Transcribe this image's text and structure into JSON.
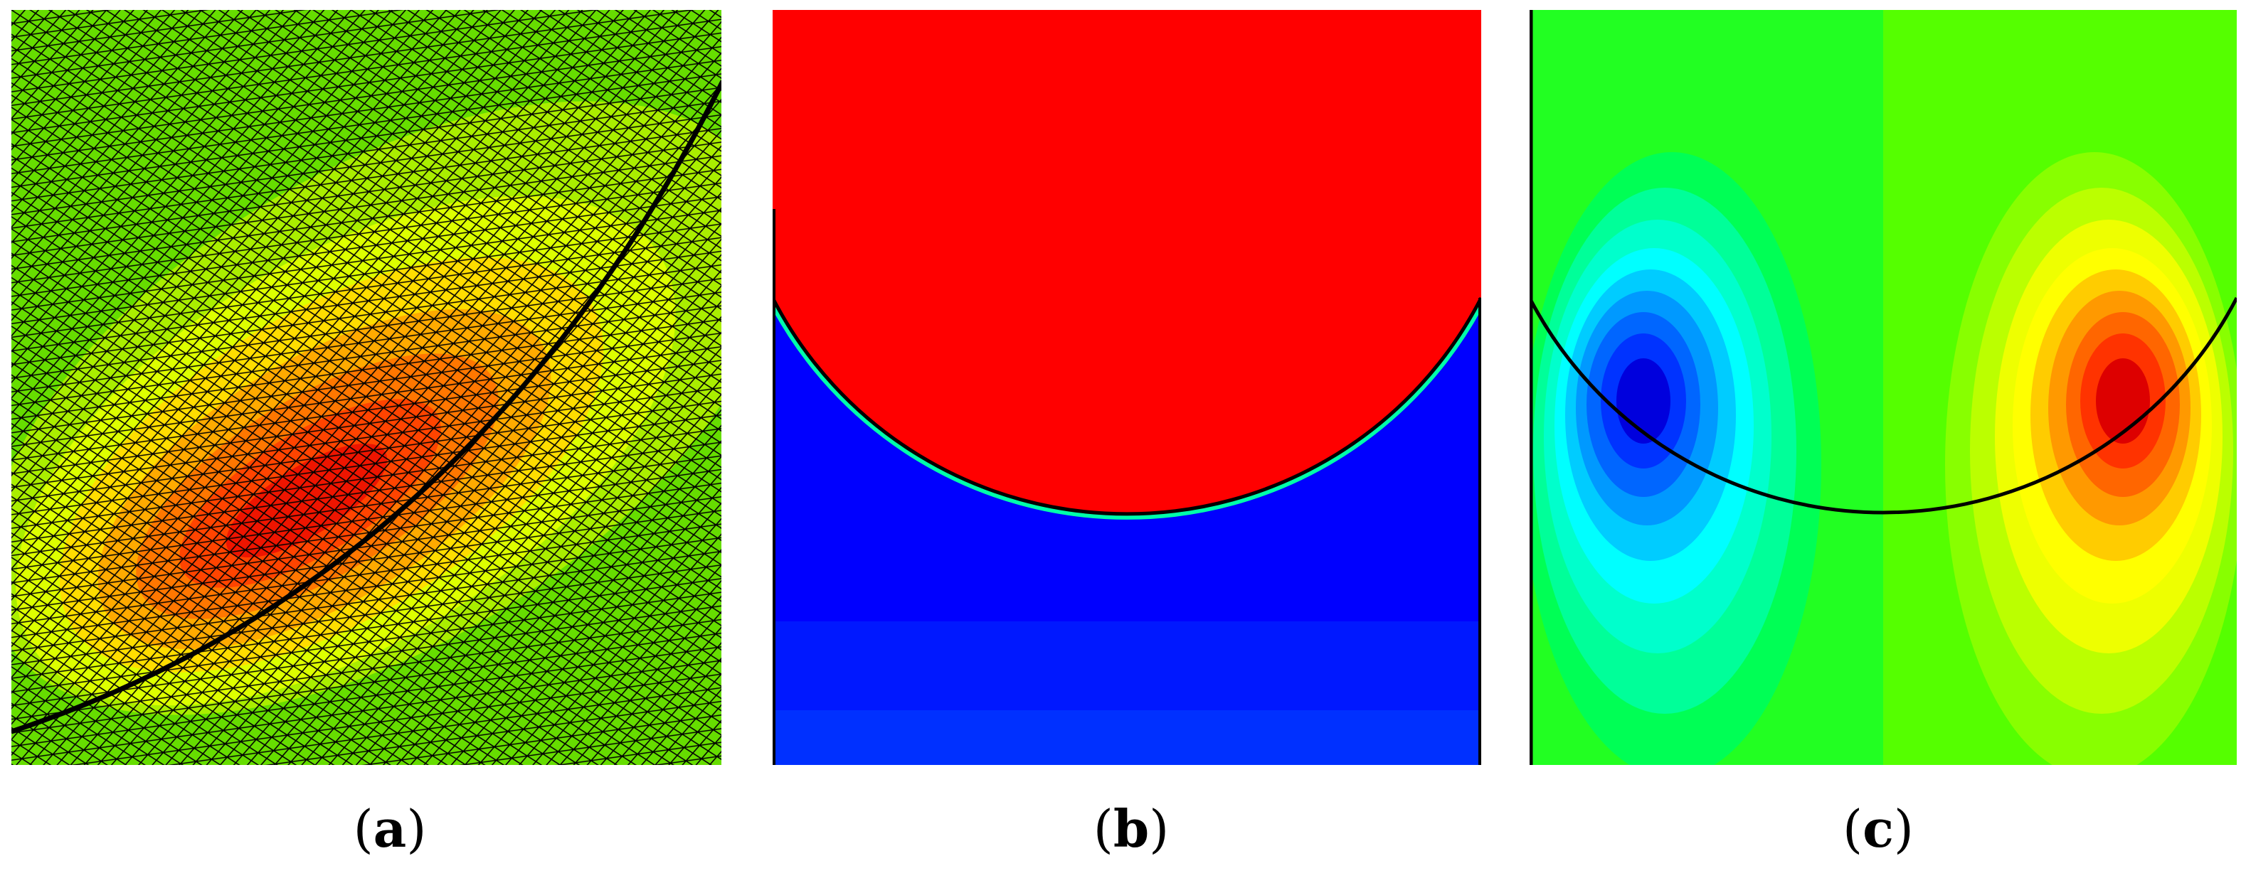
{
  "captions": {
    "a": "a",
    "b": "b",
    "c": "c"
  },
  "colors": {
    "red": "#ff0000",
    "blue": "#0000ff",
    "green": "#00ff00",
    "yellow": "#ffff00",
    "cyan": "#00ffff",
    "mesh": "#000000"
  }
}
